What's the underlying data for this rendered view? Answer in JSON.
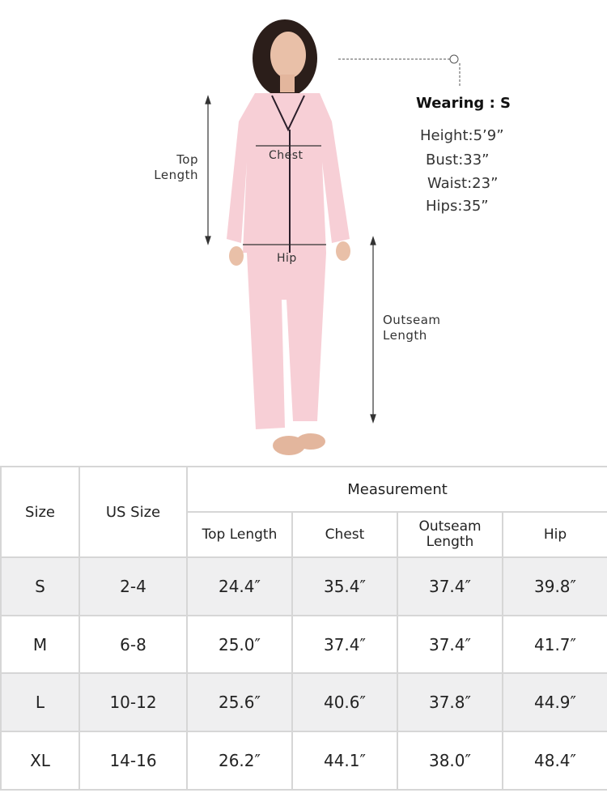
{
  "figure": {
    "labels": {
      "chest": "Chest",
      "hip": "Hip",
      "top_length": "Top\nLength",
      "outseam_length": "Outseam\nLength"
    },
    "model_info": {
      "title": "Wearing : S",
      "height": "Height:5’9”",
      "bust": "Bust:33”",
      "waist": "Waist:23”",
      "hips": "Hips:35”"
    },
    "garment_color": "#f7cfd6"
  },
  "table": {
    "headers": {
      "size": "Size",
      "us_size": "US Size",
      "measurement": "Measurement",
      "columns": [
        "Top Length",
        "Chest",
        "Outseam\nLength",
        "Hip"
      ]
    },
    "rows": [
      {
        "size": "S",
        "us_size": "2-4",
        "values": [
          "24.4″",
          "35.4″",
          "37.4″",
          "39.8″"
        ]
      },
      {
        "size": "M",
        "us_size": "6-8",
        "values": [
          "25.0″",
          "37.4″",
          "37.4″",
          "41.7″"
        ]
      },
      {
        "size": "L",
        "us_size": "10-12",
        "values": [
          "25.6″",
          "40.6″",
          "37.8″",
          "44.9″"
        ]
      },
      {
        "size": "XL",
        "us_size": "14-16",
        "values": [
          "26.2″",
          "44.1″",
          "38.0″",
          "48.4″"
        ]
      }
    ]
  }
}
